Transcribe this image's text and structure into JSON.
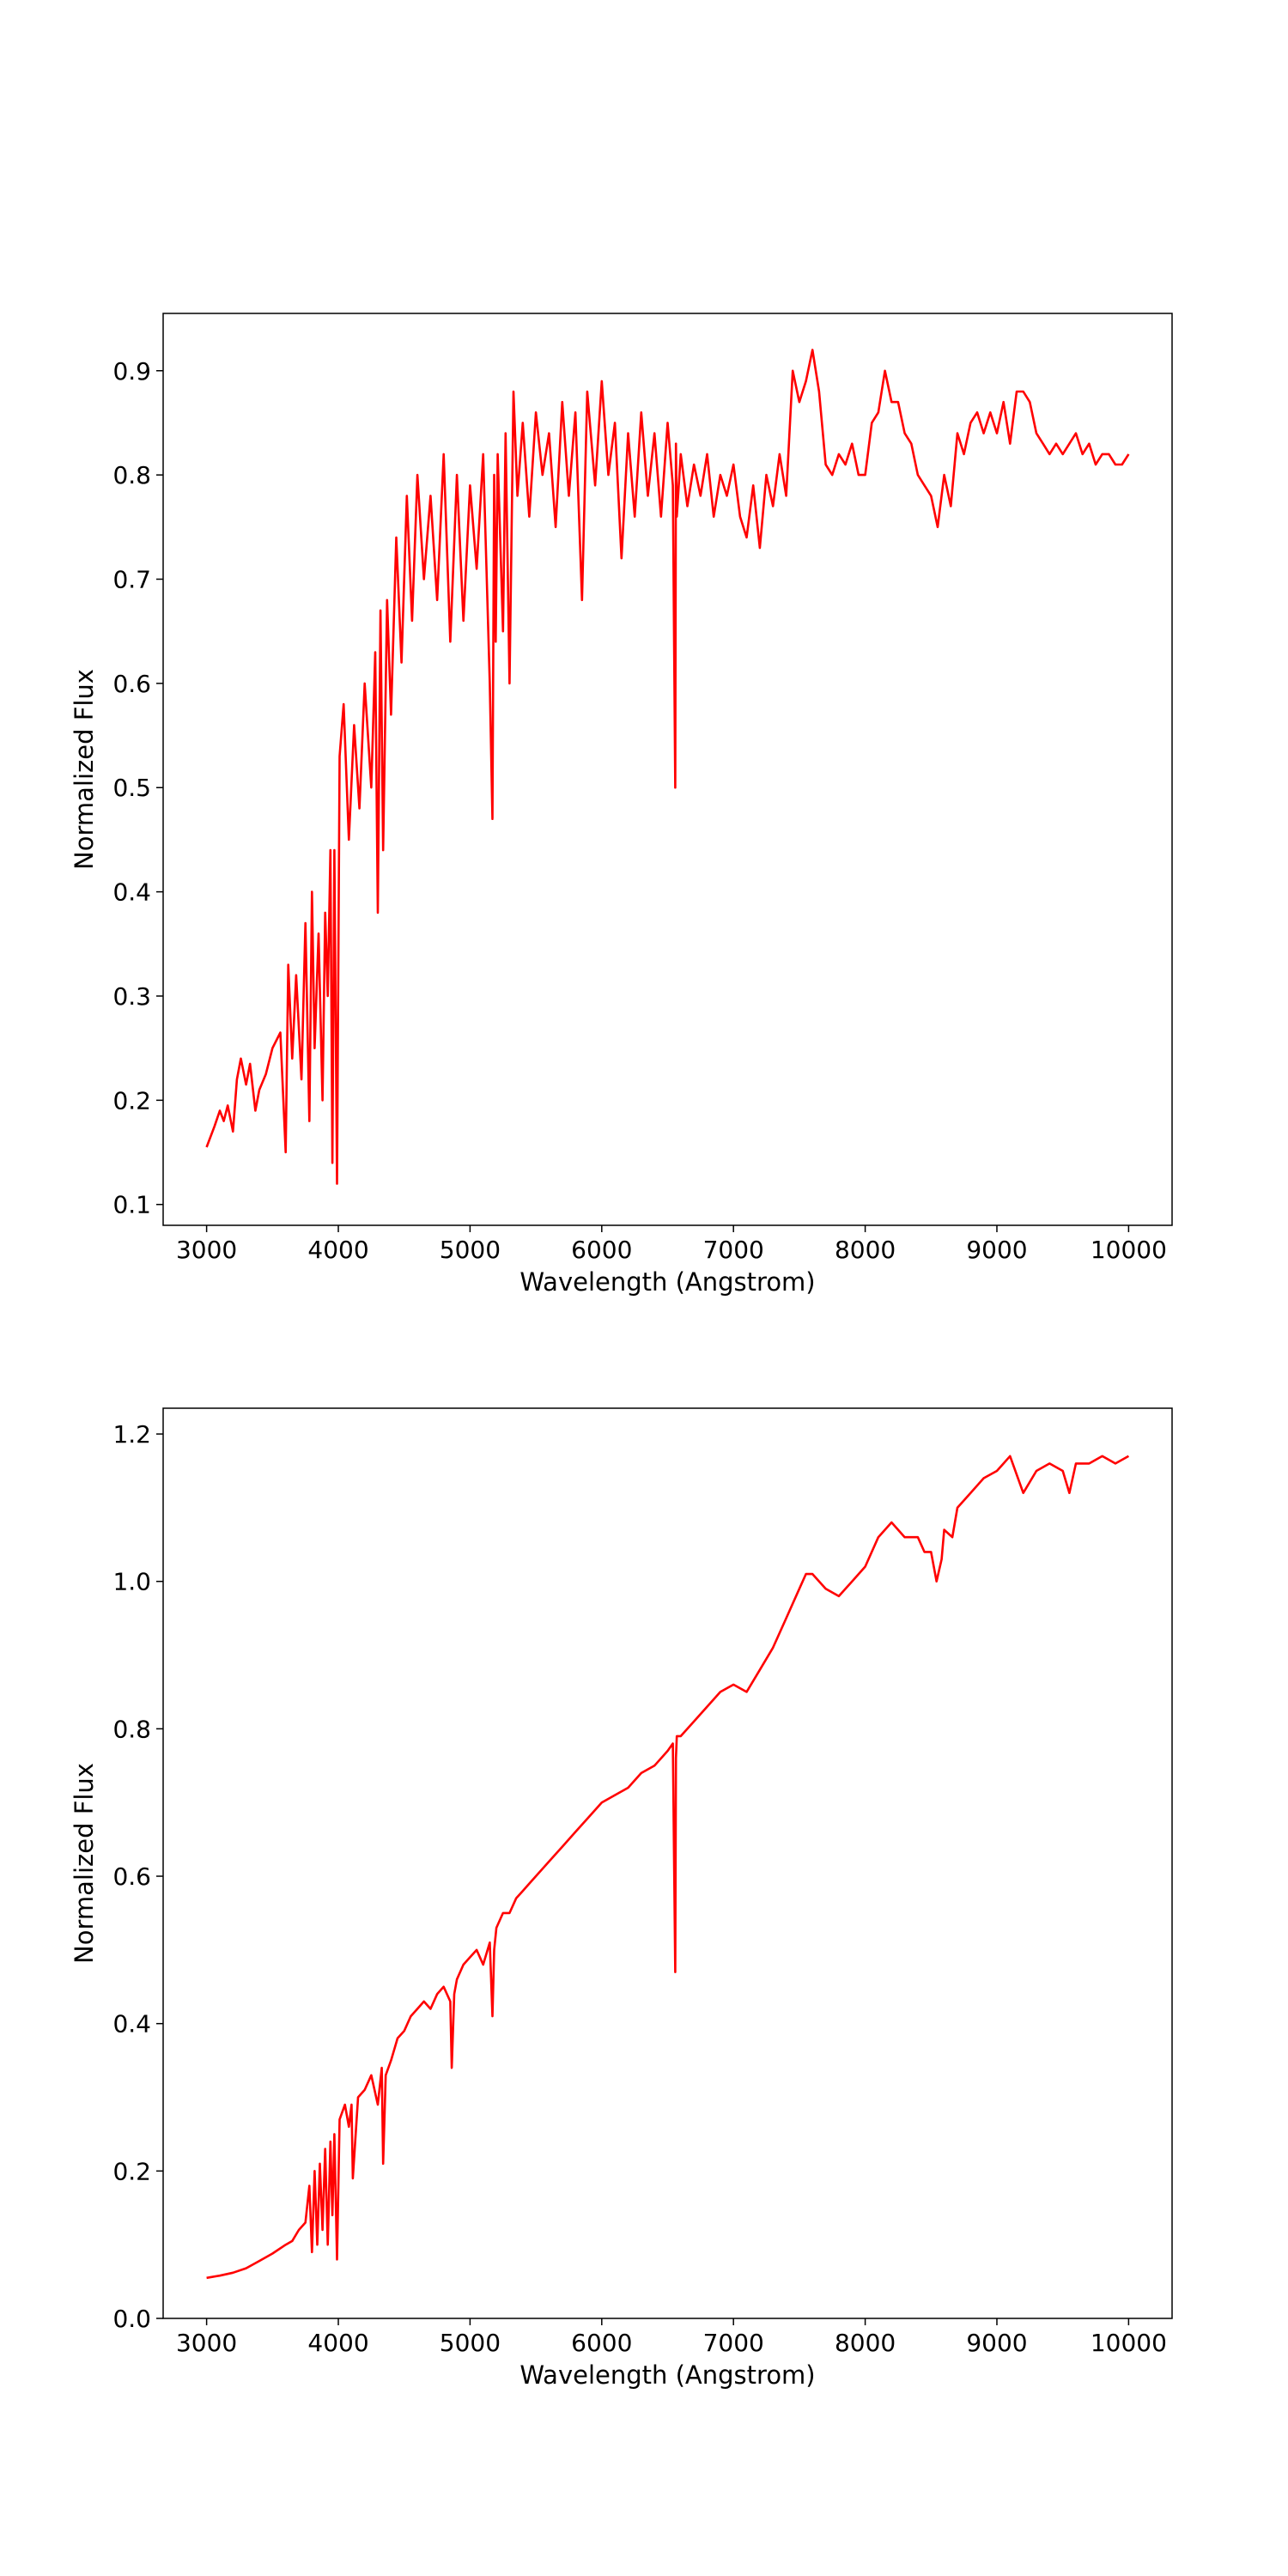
{
  "chart_data": [
    {
      "type": "line",
      "title": "",
      "xlabel": "Wavelength (Angstrom)",
      "ylabel": "Normalized Flux",
      "xlim": [
        2670,
        10330
      ],
      "ylim": [
        0.08,
        0.955
      ],
      "xticks": [
        3000,
        4000,
        5000,
        6000,
        7000,
        8000,
        9000,
        10000
      ],
      "xtick_labels": [
        "3000",
        "4000",
        "5000",
        "6000",
        "7000",
        "8000",
        "9000",
        "10000"
      ],
      "yticks": [
        0.1,
        0.2,
        0.3,
        0.4,
        0.5,
        0.6,
        0.7,
        0.8,
        0.9
      ],
      "ytick_labels": [
        "0.1",
        "0.2",
        "0.3",
        "0.4",
        "0.5",
        "0.6",
        "0.7",
        "0.8",
        "0.9"
      ],
      "grid": false,
      "legend": "none",
      "color": "#ff0000",
      "series": [
        {
          "x": [
            3000,
            3060,
            3100,
            3130,
            3160,
            3200,
            3230,
            3260,
            3300,
            3330,
            3370,
            3400,
            3450,
            3500,
            3560,
            3600,
            3620,
            3650,
            3680,
            3720,
            3750,
            3780,
            3800,
            3820,
            3850,
            3880,
            3900,
            3920,
            3940,
            3955,
            3970,
            3990,
            4010,
            4040,
            4080,
            4120,
            4160,
            4200,
            4250,
            4280,
            4300,
            4320,
            4340,
            4370,
            4400,
            4440,
            4480,
            4520,
            4560,
            4600,
            4650,
            4700,
            4750,
            4800,
            4850,
            4900,
            4950,
            5000,
            5050,
            5100,
            5150,
            5170,
            5183,
            5195,
            5210,
            5250,
            5270,
            5300,
            5330,
            5360,
            5400,
            5450,
            5500,
            5550,
            5600,
            5650,
            5700,
            5750,
            5800,
            5850,
            5890,
            5950,
            6000,
            6050,
            6100,
            6150,
            6200,
            6250,
            6300,
            6350,
            6400,
            6450,
            6500,
            6540,
            6558,
            6563,
            6570,
            6600,
            6650,
            6700,
            6750,
            6800,
            6850,
            6900,
            6950,
            7000,
            7050,
            7100,
            7150,
            7200,
            7250,
            7300,
            7350,
            7400,
            7450,
            7500,
            7550,
            7600,
            7650,
            7700,
            7750,
            7800,
            7850,
            7900,
            7950,
            8000,
            8050,
            8100,
            8150,
            8200,
            8250,
            8300,
            8350,
            8400,
            8450,
            8500,
            8550,
            8600,
            8650,
            8700,
            8750,
            8800,
            8850,
            8900,
            8950,
            9000,
            9050,
            9100,
            9150,
            9200,
            9250,
            9300,
            9350,
            9400,
            9450,
            9500,
            9550,
            9600,
            9650,
            9700,
            9750,
            9800,
            9850,
            9900,
            9950,
            10000
          ],
          "y": [
            0.155,
            0.175,
            0.19,
            0.18,
            0.195,
            0.17,
            0.22,
            0.24,
            0.215,
            0.235,
            0.19,
            0.21,
            0.225,
            0.25,
            0.265,
            0.15,
            0.33,
            0.24,
            0.32,
            0.22,
            0.37,
            0.18,
            0.4,
            0.25,
            0.36,
            0.2,
            0.38,
            0.3,
            0.44,
            0.14,
            0.44,
            0.12,
            0.53,
            0.58,
            0.45,
            0.56,
            0.48,
            0.6,
            0.5,
            0.63,
            0.38,
            0.67,
            0.44,
            0.68,
            0.57,
            0.74,
            0.62,
            0.78,
            0.66,
            0.8,
            0.7,
            0.78,
            0.68,
            0.82,
            0.64,
            0.8,
            0.66,
            0.79,
            0.71,
            0.82,
            0.6,
            0.47,
            0.8,
            0.64,
            0.82,
            0.65,
            0.84,
            0.6,
            0.88,
            0.78,
            0.85,
            0.76,
            0.86,
            0.8,
            0.84,
            0.75,
            0.87,
            0.78,
            0.86,
            0.68,
            0.88,
            0.79,
            0.89,
            0.8,
            0.85,
            0.72,
            0.84,
            0.76,
            0.86,
            0.78,
            0.84,
            0.76,
            0.85,
            0.79,
            0.5,
            0.83,
            0.76,
            0.82,
            0.77,
            0.81,
            0.78,
            0.82,
            0.76,
            0.8,
            0.78,
            0.81,
            0.76,
            0.74,
            0.79,
            0.73,
            0.8,
            0.77,
            0.82,
            0.78,
            0.9,
            0.87,
            0.89,
            0.92,
            0.88,
            0.81,
            0.8,
            0.82,
            0.81,
            0.83,
            0.8,
            0.8,
            0.85,
            0.86,
            0.9,
            0.87,
            0.87,
            0.84,
            0.83,
            0.8,
            0.79,
            0.78,
            0.75,
            0.8,
            0.77,
            0.84,
            0.82,
            0.85,
            0.86,
            0.84,
            0.86,
            0.84,
            0.87,
            0.83,
            0.88,
            0.88,
            0.87,
            0.84,
            0.83,
            0.82,
            0.83,
            0.82,
            0.83,
            0.84,
            0.82,
            0.83,
            0.81,
            0.82,
            0.82,
            0.81,
            0.81,
            0.82
          ]
        }
      ]
    },
    {
      "type": "line",
      "title": "",
      "xlabel": "Wavelength (Angstrom)",
      "ylabel": "Normalized Flux",
      "xlim": [
        2670,
        10330
      ],
      "ylim": [
        0,
        1.235
      ],
      "xticks": [
        3000,
        4000,
        5000,
        6000,
        7000,
        8000,
        9000,
        10000
      ],
      "xtick_labels": [
        "3000",
        "4000",
        "5000",
        "6000",
        "7000",
        "8000",
        "9000",
        "10000"
      ],
      "yticks": [
        0.0,
        0.2,
        0.4,
        0.6,
        0.8,
        1.0,
        1.2
      ],
      "ytick_labels": [
        "0.0",
        "0.2",
        "0.4",
        "0.6",
        "0.8",
        "1.0",
        "1.2"
      ],
      "grid": false,
      "legend": "none",
      "color": "#ff0000",
      "series": [
        {
          "x": [
            3000,
            3100,
            3200,
            3300,
            3400,
            3500,
            3600,
            3650,
            3700,
            3750,
            3780,
            3800,
            3820,
            3840,
            3860,
            3880,
            3900,
            3920,
            3940,
            3955,
            3970,
            3990,
            4010,
            4050,
            4080,
            4100,
            4110,
            4150,
            4200,
            4250,
            4300,
            4330,
            4340,
            4360,
            4400,
            4450,
            4500,
            4550,
            4600,
            4650,
            4700,
            4750,
            4800,
            4850,
            4861,
            4880,
            4900,
            4950,
            5000,
            5050,
            5100,
            5150,
            5170,
            5183,
            5200,
            5250,
            5300,
            5350,
            5400,
            5450,
            5500,
            5600,
            5700,
            5800,
            5900,
            6000,
            6100,
            6200,
            6300,
            6400,
            6500,
            6540,
            6558,
            6563,
            6570,
            6600,
            6700,
            6800,
            6900,
            7000,
            7100,
            7200,
            7300,
            7400,
            7500,
            7550,
            7600,
            7700,
            7800,
            7900,
            8000,
            8100,
            8200,
            8300,
            8400,
            8450,
            8500,
            8542,
            8580,
            8600,
            8662,
            8700,
            8800,
            8900,
            9000,
            9050,
            9100,
            9200,
            9300,
            9400,
            9500,
            9550,
            9600,
            9700,
            9800,
            9900,
            10000
          ],
          "y": [
            0.055,
            0.058,
            0.062,
            0.068,
            0.078,
            0.088,
            0.1,
            0.105,
            0.12,
            0.13,
            0.18,
            0.09,
            0.2,
            0.1,
            0.21,
            0.12,
            0.23,
            0.1,
            0.24,
            0.14,
            0.25,
            0.08,
            0.27,
            0.29,
            0.26,
            0.29,
            0.19,
            0.3,
            0.31,
            0.33,
            0.29,
            0.34,
            0.21,
            0.33,
            0.35,
            0.38,
            0.39,
            0.41,
            0.42,
            0.43,
            0.42,
            0.44,
            0.45,
            0.43,
            0.34,
            0.44,
            0.46,
            0.48,
            0.49,
            0.5,
            0.48,
            0.51,
            0.41,
            0.5,
            0.53,
            0.55,
            0.55,
            0.57,
            0.58,
            0.59,
            0.6,
            0.62,
            0.64,
            0.66,
            0.68,
            0.7,
            0.71,
            0.72,
            0.74,
            0.75,
            0.77,
            0.78,
            0.47,
            0.76,
            0.79,
            0.79,
            0.81,
            0.83,
            0.85,
            0.86,
            0.85,
            0.88,
            0.91,
            0.95,
            0.99,
            1.01,
            1.01,
            0.99,
            0.98,
            1.0,
            1.02,
            1.06,
            1.08,
            1.06,
            1.06,
            1.04,
            1.04,
            1.0,
            1.03,
            1.07,
            1.06,
            1.1,
            1.12,
            1.14,
            1.15,
            1.16,
            1.17,
            1.12,
            1.15,
            1.16,
            1.15,
            1.12,
            1.16,
            1.16,
            1.17,
            1.16,
            1.17
          ]
        }
      ]
    }
  ]
}
